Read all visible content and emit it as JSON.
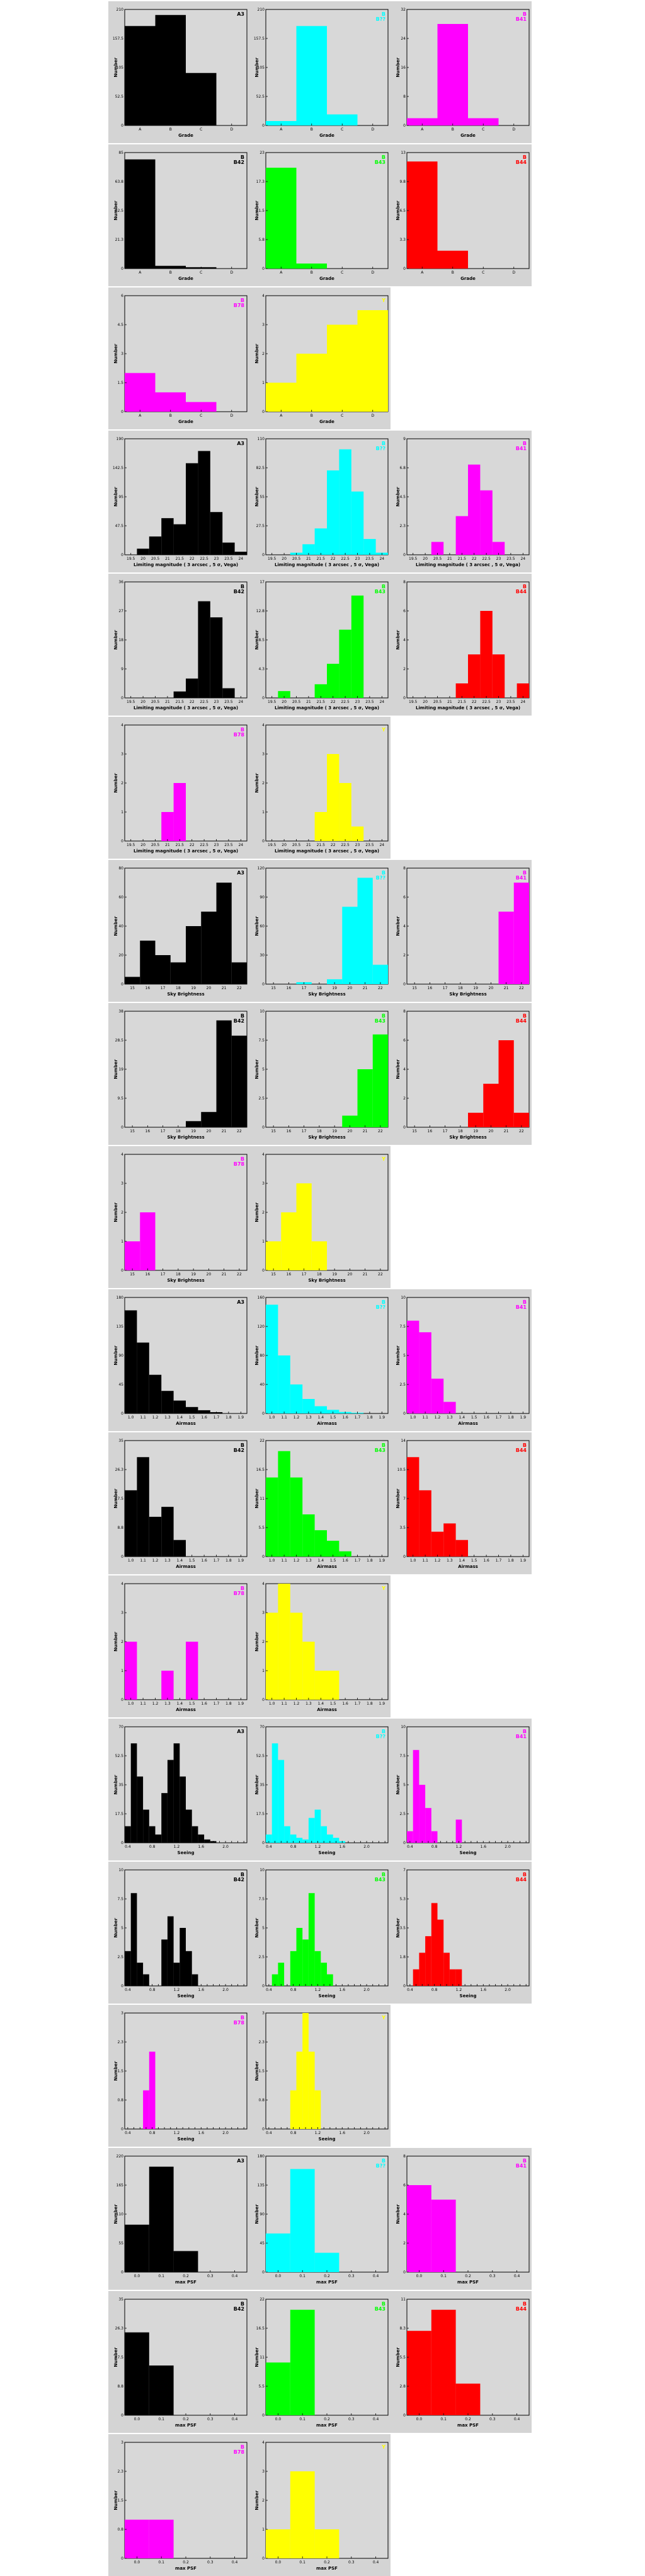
{
  "y_axis_label": "Number",
  "colors": {
    "A3": "#000000",
    "B": "#00ffff",
    "B41": "#ff00ff",
    "B42": "#000000",
    "B43": "#00ff00",
    "B44": "#ff0000",
    "B78": "#ff00ff",
    "Y": "#ffff00",
    "band_background": "#d4d4d4",
    "plot_background": "#d8d8d8"
  },
  "panel_order": [
    "A3",
    "B",
    "B41",
    "B42",
    "B43",
    "B44",
    "B78",
    "Y"
  ],
  "panel_labels": {
    "A3": [
      "A3"
    ],
    "B": [
      "B",
      "B??"
    ],
    "B41": [
      "B",
      "B41"
    ],
    "B42": [
      "B",
      "B42"
    ],
    "B43": [
      "B",
      "B43"
    ],
    "B44": [
      "B",
      "B44"
    ],
    "B78": [
      "B",
      "B78"
    ],
    "Y": [
      "Y"
    ]
  },
  "chart_data": [
    {
      "group": "grade",
      "type": "bar",
      "xlabel": "Grade",
      "ylabel": "Number",
      "bins": [
        "A",
        "B",
        "C",
        "D"
      ],
      "series": [
        {
          "name": "A3",
          "values": [
            180,
            200,
            95,
            0
          ],
          "ymax": 210
        },
        {
          "name": "B",
          "values": [
            8,
            180,
            20,
            0
          ],
          "ymax": 210
        },
        {
          "name": "B41",
          "values": [
            2,
            28,
            2,
            0
          ],
          "ymax": 32
        },
        {
          "name": "B42",
          "values": [
            80,
            2,
            1,
            0
          ],
          "ymax": 85
        },
        {
          "name": "B43",
          "values": [
            20,
            1,
            0,
            0
          ],
          "ymax": 23
        },
        {
          "name": "B44",
          "values": [
            12,
            2,
            0,
            0
          ],
          "ymax": 13
        },
        {
          "name": "B78",
          "values": [
            2,
            1,
            0.5,
            0
          ],
          "ymax": 6
        },
        {
          "name": "Y",
          "values": [
            1,
            2,
            3,
            3.5
          ],
          "ymax": 4
        }
      ]
    },
    {
      "group": "limiting",
      "type": "bar",
      "xlabel": "Limiting magnitude ( 3 arcsec , 5 σ, Vega)",
      "ylabel": "Number",
      "bins": [
        "19.5",
        "20",
        "20.5",
        "21",
        "21.5",
        "22",
        "22.5",
        "23",
        "23.5",
        "24"
      ],
      "series": [
        {
          "name": "A3",
          "values": [
            0,
            10,
            30,
            60,
            50,
            150,
            170,
            70,
            20,
            5
          ],
          "ymax": 190
        },
        {
          "name": "B",
          "values": [
            0,
            0,
            2,
            10,
            25,
            80,
            100,
            60,
            15,
            2
          ],
          "ymax": 110
        },
        {
          "name": "B41",
          "values": [
            0,
            0,
            1,
            0,
            3,
            7,
            5,
            1,
            0,
            0
          ],
          "ymax": 9
        },
        {
          "name": "B42",
          "values": [
            0,
            0,
            0,
            0,
            2,
            6,
            30,
            25,
            3,
            0
          ],
          "ymax": 36
        },
        {
          "name": "B43",
          "values": [
            0,
            1,
            0,
            0,
            2,
            5,
            10,
            15,
            0,
            0
          ],
          "ymax": 17
        },
        {
          "name": "B44",
          "values": [
            0,
            0,
            0,
            0,
            1,
            3,
            6,
            3,
            0,
            1
          ],
          "ymax": 8
        },
        {
          "name": "B78",
          "values": [
            0,
            0,
            0,
            1,
            2,
            0,
            0,
            0,
            0,
            0
          ],
          "ymax": 4
        },
        {
          "name": "Y",
          "values": [
            0,
            0,
            0,
            0,
            1,
            3,
            2,
            0.5,
            0,
            0
          ],
          "ymax": 4
        }
      ]
    },
    {
      "group": "sky",
      "type": "bar",
      "xlabel": "Sky Brightness",
      "ylabel": "Number",
      "bins": [
        "15",
        "16",
        "17",
        "18",
        "19",
        "20",
        "21",
        "22"
      ],
      "series": [
        {
          "name": "A3",
          "values": [
            5,
            30,
            20,
            15,
            40,
            50,
            70,
            15
          ],
          "ymax": 80
        },
        {
          "name": "B",
          "values": [
            0,
            0,
            2,
            0,
            5,
            80,
            110,
            20
          ],
          "ymax": 120
        },
        {
          "name": "B41",
          "values": [
            0,
            0,
            0,
            0,
            0,
            0,
            5,
            7
          ],
          "ymax": 8
        },
        {
          "name": "B42",
          "values": [
            0,
            0,
            0,
            0,
            2,
            5,
            35,
            30
          ],
          "ymax": 38
        },
        {
          "name": "B43",
          "values": [
            0,
            0,
            0,
            0,
            0,
            1,
            5,
            8
          ],
          "ymax": 10
        },
        {
          "name": "B44",
          "values": [
            0,
            0,
            0,
            0,
            1,
            3,
            6,
            1
          ],
          "ymax": 8
        },
        {
          "name": "B78",
          "values": [
            1,
            2,
            0,
            0,
            0,
            0,
            0,
            0
          ],
          "ymax": 4
        },
        {
          "name": "Y",
          "values": [
            1,
            2,
            3,
            1,
            0,
            0,
            0,
            0
          ],
          "ymax": 4
        }
      ]
    },
    {
      "group": "airmass",
      "type": "bar",
      "xlabel": "Airmass",
      "ylabel": "Number",
      "bins": [
        "1.0",
        "1.1",
        "1.2",
        "1.3",
        "1.4",
        "1.5",
        "1.6",
        "1.7",
        "1.8",
        "1.9"
      ],
      "series": [
        {
          "name": "A3",
          "values": [
            160,
            110,
            60,
            35,
            20,
            10,
            5,
            2,
            0,
            0
          ],
          "ymax": 180
        },
        {
          "name": "B",
          "values": [
            150,
            80,
            40,
            20,
            10,
            5,
            2,
            1,
            0,
            0
          ],
          "ymax": 160
        },
        {
          "name": "B41",
          "values": [
            8,
            7,
            3,
            1,
            0,
            0,
            0,
            0,
            0,
            0
          ],
          "ymax": 10
        },
        {
          "name": "B42",
          "values": [
            20,
            30,
            12,
            15,
            5,
            0,
            0,
            0,
            0,
            0
          ],
          "ymax": 35
        },
        {
          "name": "B43",
          "values": [
            15,
            20,
            15,
            8,
            5,
            3,
            1,
            0,
            0,
            0
          ],
          "ymax": 22
        },
        {
          "name": "B44",
          "values": [
            12,
            8,
            3,
            4,
            2,
            0,
            0,
            0,
            0,
            0
          ],
          "ymax": 14
        },
        {
          "name": "B78",
          "values": [
            2,
            0,
            0,
            1,
            0,
            2,
            0,
            0,
            0,
            0
          ],
          "ymax": 4
        },
        {
          "name": "Y",
          "values": [
            3,
            4,
            3,
            2,
            1,
            1,
            0,
            0,
            0,
            0
          ],
          "ymax": 4
        }
      ]
    },
    {
      "group": "seeing",
      "type": "bar",
      "xlabel": "Seeing",
      "ylabel": "Number",
      "bins": [
        "0.4",
        "0.5",
        "0.6",
        "0.7",
        "0.8",
        "0.9",
        "1.0",
        "1.1",
        "1.2",
        "1.3",
        "1.4",
        "1.5",
        "1.6",
        "1.7",
        "1.8",
        "1.9",
        "2.0",
        "2.1",
        "2.2",
        "2.3"
      ],
      "series": [
        {
          "name": "A3",
          "values": [
            10,
            60,
            40,
            20,
            10,
            5,
            30,
            50,
            60,
            40,
            20,
            10,
            5,
            2,
            1,
            0,
            0,
            0,
            0,
            0
          ],
          "ymax": 70
        },
        {
          "name": "B",
          "values": [
            5,
            60,
            50,
            10,
            5,
            3,
            2,
            15,
            20,
            10,
            5,
            3,
            1,
            0,
            0,
            0,
            0,
            0,
            0,
            0
          ],
          "ymax": 70
        },
        {
          "name": "B41",
          "values": [
            1,
            8,
            5,
            3,
            1,
            0,
            0,
            0,
            2,
            0,
            0,
            0,
            0,
            0,
            0,
            0,
            0,
            0,
            0,
            0
          ],
          "ymax": 10
        },
        {
          "name": "B42",
          "values": [
            3,
            8,
            2,
            1,
            0,
            0,
            4,
            6,
            2,
            5,
            3,
            1,
            0,
            0,
            0,
            0,
            0,
            0,
            0,
            0
          ],
          "ymax": 10
        },
        {
          "name": "B43",
          "values": [
            0,
            1,
            2,
            0,
            3,
            5,
            4,
            8,
            3,
            2,
            1,
            0,
            0,
            0,
            0,
            0,
            0,
            0,
            0,
            0
          ],
          "ymax": 10
        },
        {
          "name": "B44",
          "values": [
            0,
            1,
            2,
            3,
            5,
            4,
            2,
            1,
            1,
            0,
            0,
            0,
            0,
            0,
            0,
            0,
            0,
            0,
            0,
            0
          ],
          "ymax": 7
        },
        {
          "name": "B78",
          "values": [
            0,
            0,
            0,
            1,
            2,
            0,
            0,
            0,
            0,
            0,
            0,
            0,
            0,
            0,
            0,
            0,
            0,
            0,
            0,
            0
          ],
          "ymax": 3
        },
        {
          "name": "Y",
          "values": [
            0,
            0,
            0,
            0,
            1,
            2,
            3,
            2,
            1,
            0,
            0,
            0,
            0,
            0,
            0,
            0,
            0,
            0,
            0,
            0
          ],
          "ymax": 3
        }
      ]
    },
    {
      "group": "psf",
      "type": "bar",
      "xlabel": "max PSF",
      "ylabel": "Number",
      "bins": [
        "0.0",
        "0.1",
        "0.2",
        "0.3",
        "0.4"
      ],
      "series": [
        {
          "name": "A3",
          "values": [
            90,
            200,
            40,
            0,
            0
          ],
          "ymax": 220
        },
        {
          "name": "B",
          "values": [
            60,
            160,
            30,
            0,
            0
          ],
          "ymax": 180
        },
        {
          "name": "B41",
          "values": [
            6,
            5,
            0,
            0,
            0
          ],
          "ymax": 8
        },
        {
          "name": "B42",
          "values": [
            25,
            15,
            0,
            0,
            0
          ],
          "ymax": 35
        },
        {
          "name": "B43",
          "values": [
            10,
            20,
            0,
            0,
            0
          ],
          "ymax": 22
        },
        {
          "name": "B44",
          "values": [
            8,
            10,
            3,
            0,
            0
          ],
          "ymax": 11
        },
        {
          "name": "B78",
          "values": [
            1,
            1,
            0,
            0,
            0
          ],
          "ymax": 3
        },
        {
          "name": "Y",
          "values": [
            1,
            3,
            1,
            0,
            0
          ],
          "ymax": 4
        }
      ]
    }
  ]
}
